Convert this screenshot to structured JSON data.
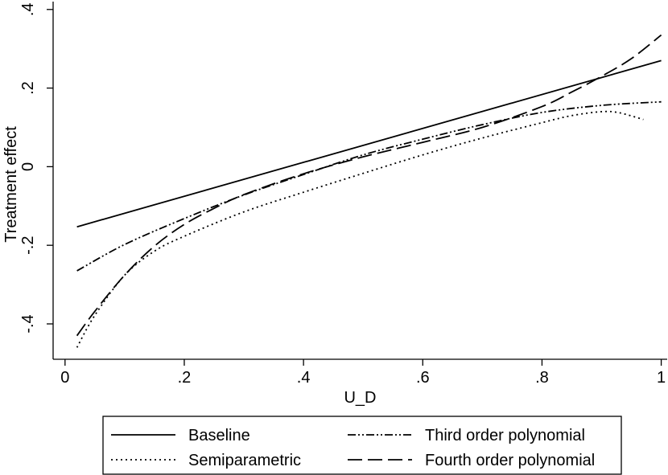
{
  "chart_data": {
    "type": "line",
    "xlabel": "U_D",
    "ylabel": "Treatment effect",
    "xlim": [
      -0.02,
      1.01
    ],
    "ylim": [
      -0.49,
      0.42
    ],
    "xticks": [
      0,
      0.2,
      0.4,
      0.6,
      0.8,
      1
    ],
    "xtick_labels": [
      "0",
      ".2",
      ".4",
      ".6",
      ".8",
      "1"
    ],
    "yticks": [
      -0.4,
      -0.2,
      0,
      0.2,
      0.4
    ],
    "ytick_labels": [
      "-.4",
      "-.2",
      "0",
      ".2",
      ".4"
    ],
    "grid": false,
    "legend_position": "bottom",
    "series": [
      {
        "name": "Baseline",
        "style": "solid",
        "x": [
          0.02,
          1.0
        ],
        "y": [
          -0.153,
          0.27
        ]
      },
      {
        "name": "Third order polynomial",
        "style": "dash-dot-dot",
        "x": [
          0.02,
          0.1,
          0.2,
          0.3,
          0.4,
          0.5,
          0.6,
          0.7,
          0.8,
          0.9,
          1.0
        ],
        "y": [
          -0.265,
          -0.198,
          -0.132,
          -0.072,
          -0.02,
          0.03,
          0.07,
          0.107,
          0.138,
          0.156,
          0.165
        ]
      },
      {
        "name": "Semiparametric",
        "style": "dotted",
        "x": [
          0.02,
          0.05,
          0.1,
          0.15,
          0.2,
          0.3,
          0.4,
          0.5,
          0.6,
          0.7,
          0.8,
          0.85,
          0.9,
          0.93,
          0.97
        ],
        "y": [
          -0.46,
          -0.378,
          -0.276,
          -0.215,
          -0.177,
          -0.115,
          -0.065,
          -0.017,
          0.03,
          0.073,
          0.112,
          0.13,
          0.14,
          0.137,
          0.12
        ]
      },
      {
        "name": "Fourth order polynomial",
        "style": "long-dash",
        "x": [
          0.02,
          0.05,
          0.1,
          0.15,
          0.2,
          0.25,
          0.3,
          0.4,
          0.5,
          0.6,
          0.7,
          0.8,
          0.85,
          0.9,
          0.95,
          1.0
        ],
        "y": [
          -0.43,
          -0.368,
          -0.276,
          -0.202,
          -0.147,
          -0.106,
          -0.071,
          -0.018,
          0.025,
          0.062,
          0.1,
          0.153,
          0.19,
          0.23,
          0.275,
          0.335
        ]
      }
    ],
    "legend_layout": [
      [
        "Baseline",
        "Third order polynomial"
      ],
      [
        "Semiparametric",
        "Fourth order polynomial"
      ]
    ]
  }
}
